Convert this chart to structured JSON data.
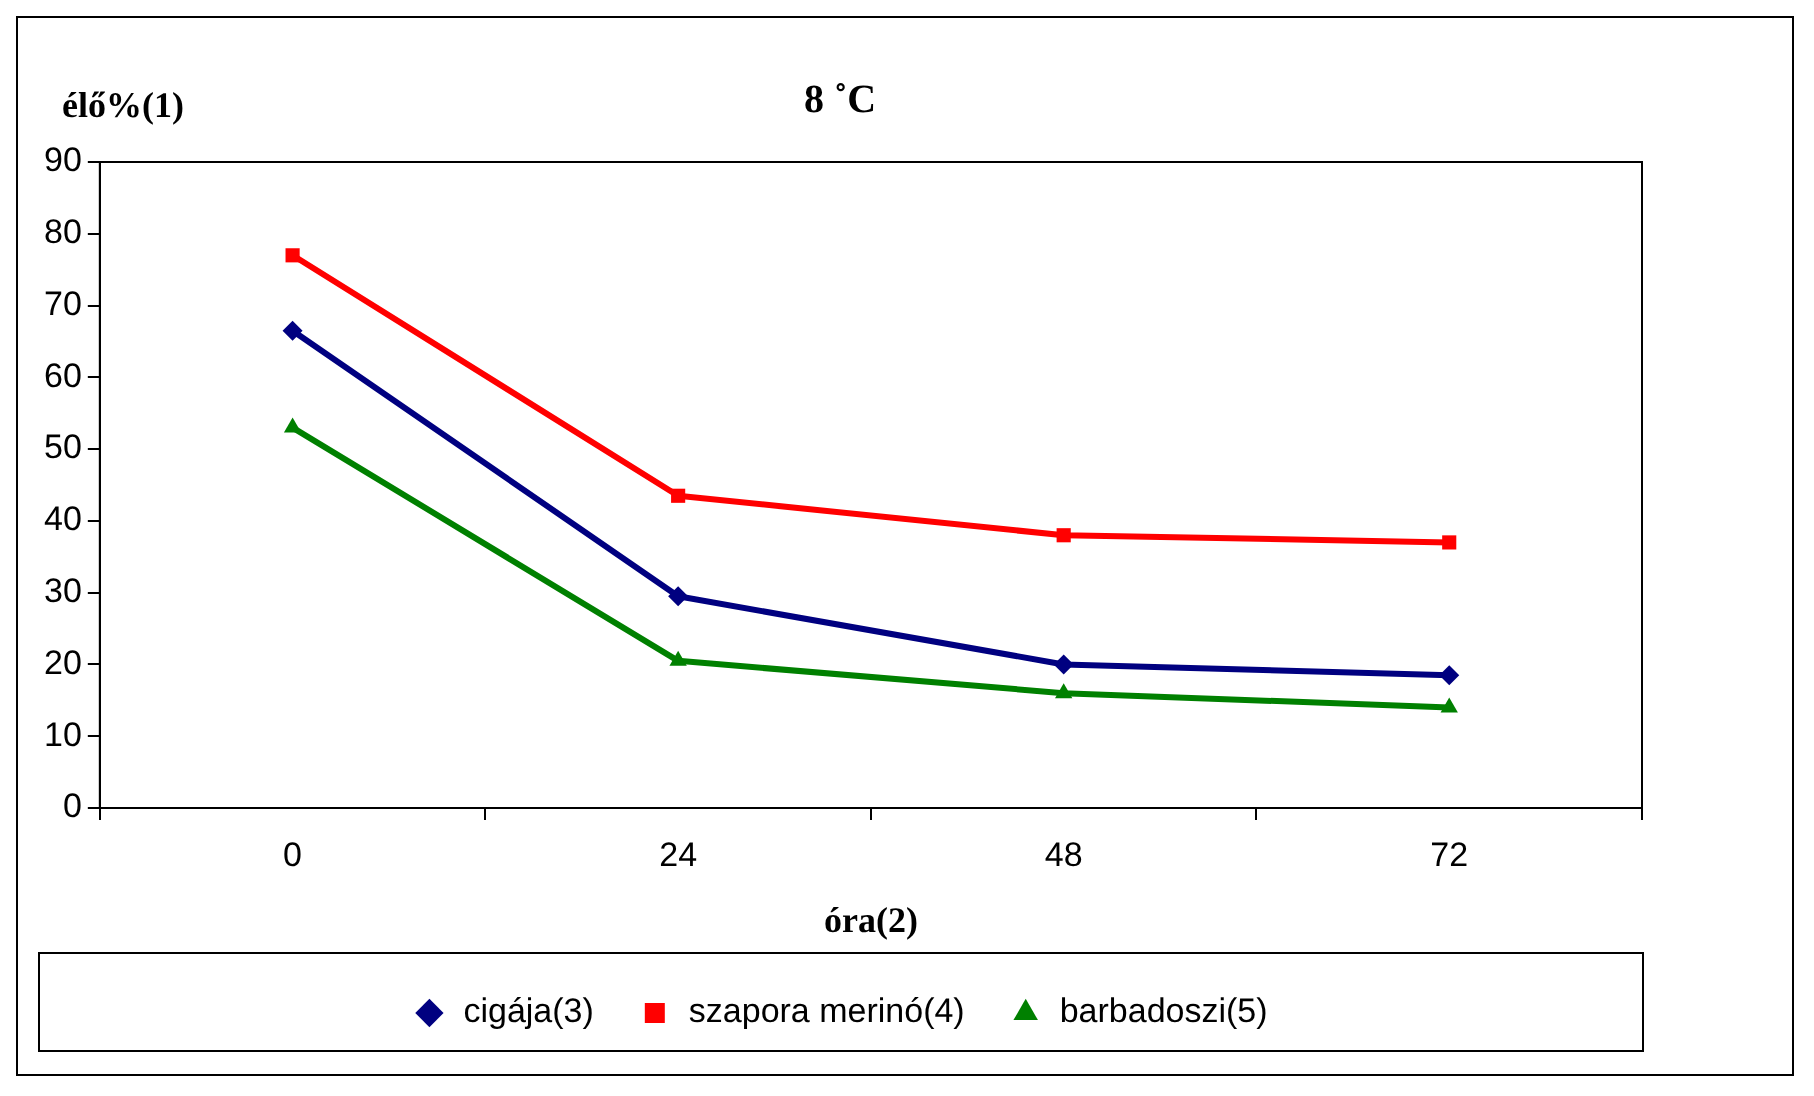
{
  "chart_data": {
    "type": "line",
    "title": "8 ˚C",
    "ylabel": "élő%(1)",
    "xlabel": "óra(2)",
    "categories": [
      "0",
      "24",
      "48",
      "72"
    ],
    "series": [
      {
        "name": "cigája(3)",
        "color": "#000080",
        "marker": "diamond",
        "values": [
          66.5,
          29.5,
          20,
          18.5
        ]
      },
      {
        "name": "szapora merinó(4)",
        "color": "#ff0000",
        "marker": "square",
        "values": [
          77,
          43.5,
          38,
          37
        ]
      },
      {
        "name": "barbadoszi(5)",
        "color": "#008000",
        "marker": "triangle",
        "values": [
          53,
          20.5,
          16,
          14
        ]
      }
    ],
    "ylim": [
      0,
      90
    ],
    "yticks": [
      0,
      10,
      20,
      30,
      40,
      50,
      60,
      70,
      80,
      90
    ],
    "grid": false,
    "legend": "bottom",
    "line_style": "solid"
  }
}
